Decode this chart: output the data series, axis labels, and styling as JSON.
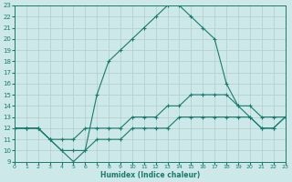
{
  "xlabel": "Humidex (Indice chaleur)",
  "bg_color": "#cce8e8",
  "grid_color": "#b0cccc",
  "line_color": "#1a7a6e",
  "xlim": [
    0,
    23
  ],
  "ylim": [
    9,
    23
  ],
  "xticks": [
    0,
    1,
    2,
    3,
    4,
    5,
    6,
    7,
    8,
    9,
    10,
    11,
    12,
    13,
    14,
    15,
    16,
    17,
    18,
    19,
    20,
    21,
    22,
    23
  ],
  "yticks": [
    9,
    10,
    11,
    12,
    13,
    14,
    15,
    16,
    17,
    18,
    19,
    20,
    21,
    22,
    23
  ],
  "line1_x": [
    0,
    1,
    2,
    3,
    4,
    5,
    6,
    7,
    8,
    9,
    10,
    11,
    12,
    13,
    14,
    15,
    16,
    17,
    18,
    19,
    20,
    21,
    22,
    23
  ],
  "line1_y": [
    12,
    12,
    12,
    11,
    10,
    9,
    10,
    15,
    18,
    19,
    20,
    21,
    22,
    23,
    23,
    22,
    21,
    20,
    16,
    14,
    13,
    12,
    12,
    13
  ],
  "line2_x": [
    0,
    1,
    2,
    3,
    4,
    5,
    6,
    7,
    8,
    9,
    10,
    11,
    12,
    13,
    14,
    15,
    16,
    17,
    18,
    19,
    20,
    21,
    22,
    23
  ],
  "line2_y": [
    12,
    12,
    12,
    11,
    11,
    11,
    12,
    12,
    12,
    12,
    13,
    13,
    13,
    14,
    14,
    15,
    15,
    15,
    15,
    14,
    14,
    13,
    13,
    13
  ],
  "line3_x": [
    0,
    1,
    2,
    3,
    4,
    5,
    6,
    7,
    8,
    9,
    10,
    11,
    12,
    13,
    14,
    15,
    16,
    17,
    18,
    19,
    20,
    21,
    22,
    23
  ],
  "line3_y": [
    12,
    12,
    12,
    11,
    10,
    10,
    10,
    11,
    11,
    11,
    12,
    12,
    12,
    12,
    13,
    13,
    13,
    13,
    13,
    13,
    13,
    12,
    12,
    13
  ]
}
